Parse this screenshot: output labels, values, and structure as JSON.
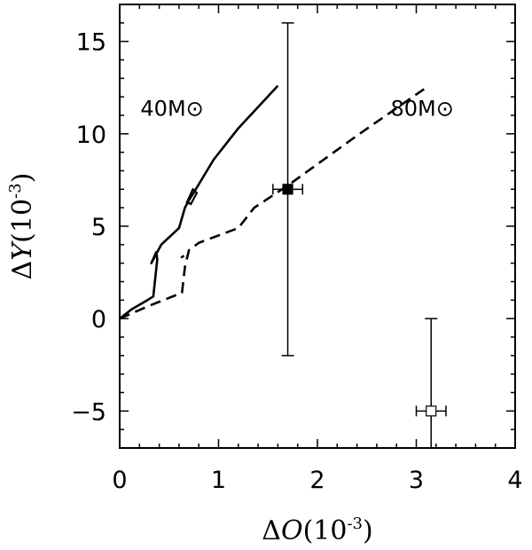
{
  "chart_data": {
    "type": "line",
    "xlabel": "ΔO(10⁻³)",
    "xlabel_parts": {
      "delta": "Δ",
      "var": "O",
      "unit": "(10",
      "exp": "-3",
      "close": ")"
    },
    "ylabel": "ΔY(10⁻³)",
    "ylabel_parts": {
      "delta": "Δ",
      "var": "Y",
      "unit": "(10",
      "exp": "-3",
      "close": ")"
    },
    "xlim": [
      0,
      4
    ],
    "ylim": [
      -7,
      17
    ],
    "xticks": [
      0,
      1,
      2,
      3,
      4
    ],
    "xtick_labels": [
      "0",
      "1",
      "2",
      "3",
      "4"
    ],
    "yticks": [
      -5,
      0,
      5,
      10,
      15
    ],
    "ytick_labels": [
      "−5",
      "0",
      "5",
      "10",
      "15"
    ],
    "grid": false,
    "series": [
      {
        "name": "40M⊙",
        "style": "solid",
        "points": [
          [
            0.0,
            0.0
          ],
          [
            0.12,
            0.5
          ],
          [
            0.28,
            1.0
          ],
          [
            0.34,
            1.2
          ],
          [
            0.38,
            3.2
          ],
          [
            0.37,
            3.6
          ],
          [
            0.32,
            3.0
          ],
          [
            0.42,
            4.0
          ],
          [
            0.6,
            4.9
          ],
          [
            0.66,
            6.0
          ],
          [
            0.7,
            6.4
          ],
          [
            0.77,
            7.0
          ],
          [
            0.95,
            8.6
          ],
          [
            1.2,
            10.3
          ],
          [
            1.6,
            12.6
          ]
        ],
        "loop": [
          [
            0.68,
            6.3
          ],
          [
            0.74,
            7.0
          ],
          [
            0.78,
            6.8
          ],
          [
            0.72,
            6.2
          ]
        ]
      },
      {
        "name": "80M⊙",
        "style": "dashed",
        "points": [
          [
            0.0,
            0.0
          ],
          [
            0.3,
            0.7
          ],
          [
            0.63,
            1.4
          ],
          [
            0.66,
            2.8
          ],
          [
            0.7,
            3.7
          ],
          [
            0.8,
            4.1
          ],
          [
            1.2,
            4.9
          ],
          [
            1.36,
            6.0
          ],
          [
            1.7,
            7.2
          ],
          [
            2.4,
            9.9
          ],
          [
            3.1,
            12.5
          ]
        ],
        "extra": [
          [
            0.62,
            3.3
          ],
          [
            0.68,
            3.5
          ]
        ]
      }
    ],
    "annotations": [
      {
        "text": "40M⊙",
        "x": 0.53,
        "y": 11.4
      },
      {
        "text": "80M⊙",
        "x": 3.06,
        "y": 11.4
      }
    ],
    "error_points": [
      {
        "x": 1.7,
        "y": 7.0,
        "xerr": 0.15,
        "y_low": -2.0,
        "y_high": 16.0,
        "marker": "filled-square"
      },
      {
        "x": 3.15,
        "y": -5.0,
        "xerr": 0.15,
        "y_low": -7.0,
        "y_high": 0.0,
        "marker": "open-square"
      }
    ]
  }
}
